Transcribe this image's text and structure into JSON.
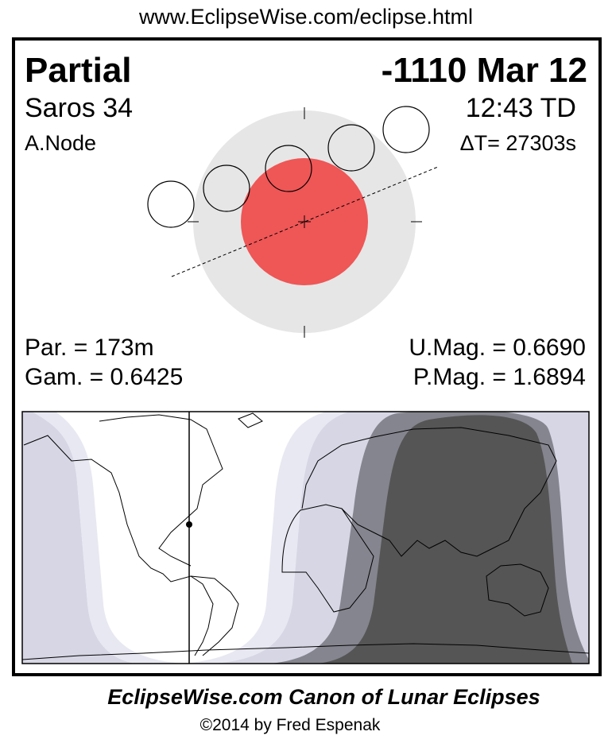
{
  "header": {
    "url": "www.EclipseWise.com/eclipse.html"
  },
  "eclipse": {
    "type": "Partial",
    "date": "-1110 Mar 12",
    "saros": "Saros  34",
    "time": "12:43 TD",
    "node": "A.Node",
    "delta_t": "ΔT=  27303s",
    "partial_duration": "Par. = 173m",
    "gamma": "Gam. = 0.6425",
    "umbral_magnitude": "U.Mag. = 0.6690",
    "penumbral_magnitude": "P.Mag. = 1.6894"
  },
  "colors": {
    "penumbra": "#e6e6e6",
    "umbra": "#ef5656",
    "map_total": "#555555",
    "map_partial": "#85858f",
    "map_penumbral_deep": "#d6d6e4",
    "map_penumbral_light": "#e8e8f2"
  },
  "footer": {
    "title": "EclipseWise.com Canon of Lunar Eclipses",
    "copyright": "©2014 by Fred Espenak"
  }
}
